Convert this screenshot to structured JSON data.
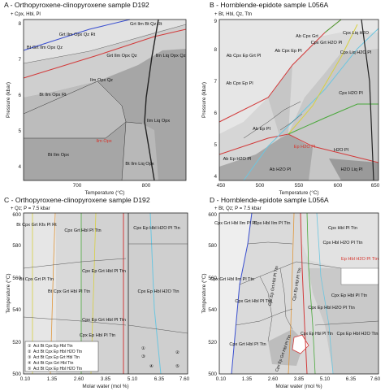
{
  "panels": [
    {
      "id": "A",
      "title": "A - Orthopyroxene-clinopyroxene sample D192",
      "subtitle": "+ Cpx, Hbl, Pl",
      "xlabel": "Temperature (°C)",
      "ylabel": "Pressure (kbar)",
      "xticks": [
        "700",
        "800"
      ],
      "yticks": [
        "4",
        "5",
        "6",
        "7",
        "8"
      ],
      "fields": [
        "Grt Ilm Bt Qz Rt",
        "Grt Ilm Opx Qz Rt",
        "Bt Grt Ilm Opx Qz",
        "Grt Ilm Opx Qz",
        "Ilm Liq Opx Qz",
        "Bt Ilm Opx Rt",
        "Ilm Opx Qz",
        "Bt Ilm Opx",
        "Ilm Liq Opx",
        "Ilm Opx",
        "Bt Ilm Liq Opx"
      ]
    },
    {
      "id": "B",
      "title": "B - Hornblende-epidote sample L056A",
      "subtitle": "+ Bt, Hbl, Qz, Ttn",
      "xlabel": "Temperature (°C)",
      "ylabel": "Pressure (kbar)",
      "xticks": [
        "450",
        "500",
        "550",
        "600",
        "650"
      ],
      "yticks": [
        "4",
        "5",
        "6",
        "7",
        "8",
        "9"
      ],
      "fields": [
        "Ab Cpx Ep Grt Pl",
        "Cpx Grt H2O Pl",
        "Ab Cpx Grt",
        "Ab Cpx Ep Pl",
        "Cpx Liq H2O",
        "Cpx Liq H2O Pl",
        "Cpx H2O Pl",
        "Ab Cpx Ep Pl",
        "Ab Ep Pl",
        "Ab Ep H2O Pl",
        "Ep H2O Pl",
        "Ab H2O Pl",
        "H2O Pl",
        "H2O Liq Pl"
      ]
    },
    {
      "id": "C",
      "title": "C - Orthopyroxene-clinopyroxene sample D192",
      "subtitle": "+ Qz; P = 7.5 kbar",
      "xlabel": "Molar water (mol %)",
      "ylabel": "Temperature (°C)",
      "xticks": [
        "0.10",
        "1.35",
        "2.60",
        "3.85",
        "5.10",
        "6.35",
        "7.60"
      ],
      "yticks": [
        "500",
        "520",
        "540",
        "560",
        "580",
        "600"
      ],
      "fields": [
        "Bt Cpx Grt Kfs Pl Rt",
        "Bt Cpx Grt Pl Ttn",
        "Cpx Grt Hbl Pl Ttn",
        "Cpx Ep Hbl H2O Pl Ttn",
        "Cpx Ep Grt Hbl Pl Ttn",
        "Bt Cpx Grt Hbl Pl Ttn",
        "Cpx Ep Grt Hbl Pl Ttn",
        "Cpx Ep Hbl H2O Ttn",
        "Cpx Ep Hbl Pl Ttn"
      ],
      "legend": [
        "Act Bt Cpx Ep Hbl Ttn",
        "Act Bt Cpx Ep Hbl H2O Ttn",
        "Act Bt Cpx Ep Grt Hbl Ttn",
        "Act Bt Cpx Grt Hbl Ttn",
        "Act Bt Cpx Ep Hbl H2O Ttn"
      ]
    },
    {
      "id": "D",
      "title": "D - Hornblende-epidote sample L056A",
      "subtitle": "+ Bt, Qz; P = 7.5 kbar",
      "xlabel": "Molar water (mol %)",
      "ylabel": "Temperature (°C)",
      "xticks": [
        "0.10",
        "1.35",
        "2.60",
        "3.85",
        "5.10",
        "6.35",
        "7.60"
      ],
      "yticks": [
        "500",
        "520",
        "540",
        "560",
        "580",
        "600"
      ],
      "fields": [
        "Cpx Grt Hbl Ilm Pl Rt",
        "Cpx Hbl Ilm Pl Ttn",
        "Cpx Hbl Pl Ttn",
        "Cpx Hbl H2O Pl Ttn",
        "Ep Hbl H2O Pl Ttn",
        "Cpx Grt Hbl Ilm Pl Ttn",
        "Cpx Grt Hbl Pl Ttn",
        "Cpx Ep Grt Hbl Pl Ttn",
        "Cpx Ep Hbl Pl Ttn",
        "Cpx Ep Hbl H2O Pl Ttn",
        "Cpx Ep Hbl H2O Ttn",
        "Cpx Ep Hbl Pl Ttn",
        "Cpx Grt Hbl Pl Ttn",
        "Cpx Ep Grt Hbl Pl Ttn",
        "Cpx Ep Hbl Pl Ttn"
      ]
    }
  ],
  "colors": {
    "fieldDark": "#a6a6a6",
    "fieldMid": "#c4c4c4",
    "fieldLight": "#dadada",
    "fieldPale": "#ececec",
    "blue": "#3a4fd0",
    "red": "#d23a3a",
    "green": "#49a83a",
    "yellow": "#d8d040",
    "cyan": "#6cc6e0",
    "orange": "#e0963a",
    "redText": "#d6342c"
  }
}
